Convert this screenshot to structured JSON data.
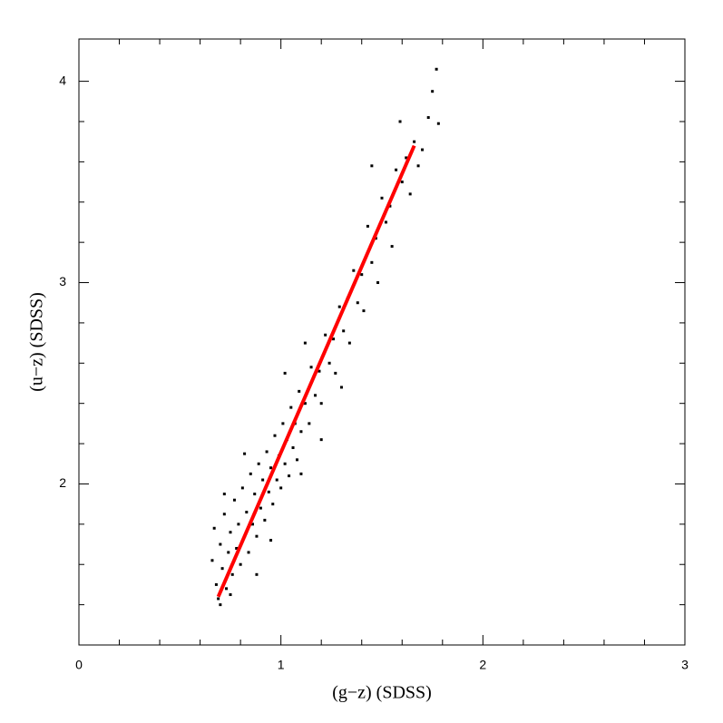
{
  "chart_data": {
    "type": "scatter",
    "x_label": "(g−z) (SDSS)",
    "y_label": "(u−z) (SDSS)",
    "xlim": [
      0,
      3
    ],
    "ylim": [
      1.2,
      4.21
    ],
    "xticks": [
      0,
      1,
      2,
      3
    ],
    "yticks": [
      2,
      3,
      4
    ],
    "xminorticks": [
      0.2,
      0.4,
      0.6,
      0.8,
      1.2,
      1.4,
      1.6,
      1.8,
      2.2,
      2.4,
      2.6,
      2.8
    ],
    "yminorticks": [
      1.4,
      1.6,
      1.8,
      2.2,
      2.4,
      2.6,
      2.8,
      3.2,
      3.4,
      3.6,
      3.8
    ],
    "points": {
      "color": "#000000",
      "x": [
        0.66,
        0.67,
        0.68,
        0.69,
        0.7,
        0.71,
        0.72,
        0.73,
        0.74,
        0.75,
        0.76,
        0.77,
        0.78,
        0.79,
        0.8,
        0.81,
        0.82,
        0.83,
        0.84,
        0.85,
        0.86,
        0.87,
        0.88,
        0.89,
        0.9,
        0.91,
        0.92,
        0.93,
        0.94,
        0.95,
        0.96,
        0.97,
        0.98,
        0.99,
        1.0,
        1.01,
        1.02,
        1.03,
        1.04,
        1.05,
        1.06,
        1.07,
        1.08,
        1.09,
        1.1,
        1.12,
        1.14,
        1.15,
        1.17,
        1.19,
        1.2,
        1.22,
        1.24,
        1.26,
        1.27,
        1.29,
        1.31,
        1.33,
        1.34,
        1.36,
        1.38,
        1.4,
        1.41,
        1.43,
        1.45,
        1.47,
        1.48,
        1.5,
        1.52,
        1.54,
        1.55,
        1.57,
        1.6,
        1.62,
        1.64,
        1.66,
        1.7,
        1.73,
        1.75,
        1.77,
        1.78,
        1.68,
        1.59,
        1.45,
        0.88,
        0.95,
        1.1,
        1.2,
        1.3,
        0.7,
        0.75,
        0.72,
        0.82,
        1.02,
        1.12
      ],
      "y": [
        1.62,
        1.78,
        1.5,
        1.43,
        1.7,
        1.58,
        1.85,
        1.48,
        1.66,
        1.76,
        1.55,
        1.92,
        1.68,
        1.8,
        1.6,
        1.98,
        1.74,
        1.86,
        1.66,
        2.05,
        1.8,
        1.95,
        1.74,
        2.1,
        1.88,
        2.02,
        1.82,
        2.16,
        1.96,
        2.08,
        1.9,
        2.24,
        2.02,
        2.14,
        1.98,
        2.3,
        2.1,
        2.22,
        2.04,
        2.38,
        2.18,
        2.3,
        2.12,
        2.46,
        2.26,
        2.4,
        2.3,
        2.58,
        2.44,
        2.56,
        2.4,
        2.74,
        2.6,
        2.72,
        2.55,
        2.88,
        2.76,
        2.92,
        2.7,
        3.06,
        2.9,
        3.04,
        2.86,
        3.28,
        3.1,
        3.22,
        3.0,
        3.42,
        3.3,
        3.38,
        3.18,
        3.56,
        3.5,
        3.62,
        3.44,
        3.7,
        3.66,
        3.82,
        3.95,
        4.06,
        3.79,
        3.58,
        3.8,
        3.58,
        1.55,
        1.72,
        2.05,
        2.22,
        2.48,
        1.4,
        1.45,
        1.95,
        2.15,
        2.55,
        2.7
      ]
    },
    "fit": {
      "color": "#ff0000",
      "x": [
        0.69,
        1.66
      ],
      "y": [
        1.44,
        3.68
      ]
    }
  }
}
